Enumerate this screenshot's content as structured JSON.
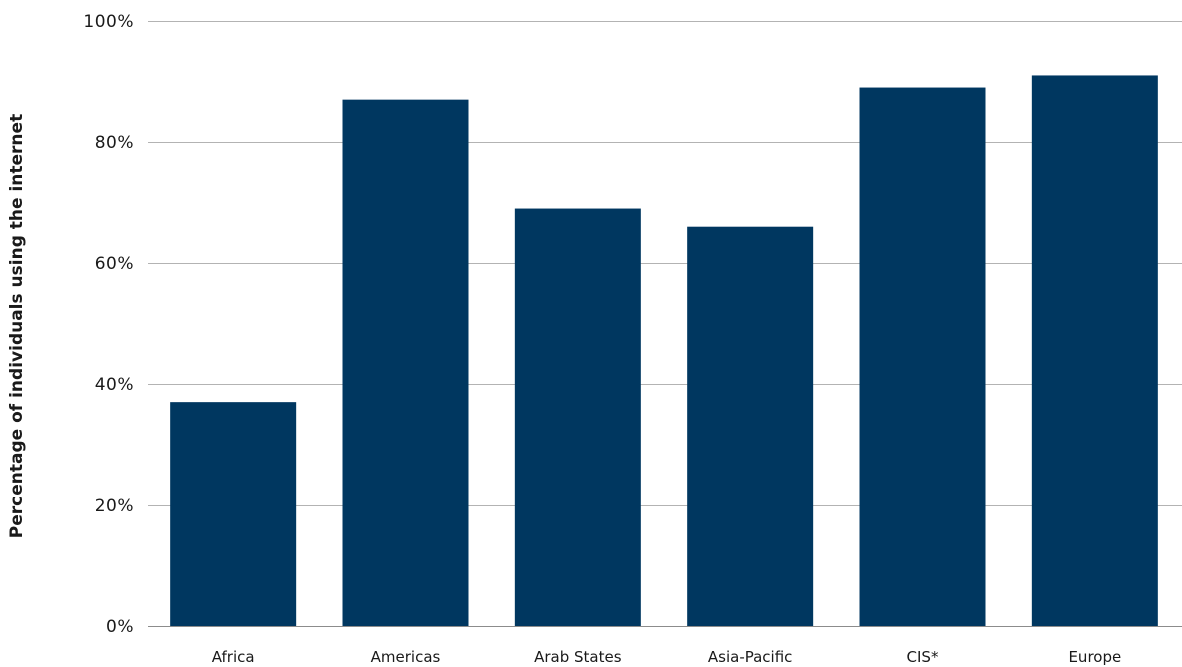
{
  "chart_data": {
    "type": "bar",
    "categories": [
      "Africa",
      "Americas",
      "Arab States",
      "Asia-Pacific",
      "CIS*",
      "Europe"
    ],
    "values": [
      37,
      87,
      69,
      66,
      89,
      91
    ],
    "title": "",
    "xlabel": "",
    "ylabel": "Percentage of individuals using the internet",
    "ylim": [
      0,
      100
    ],
    "yticks": [
      0,
      20,
      40,
      60,
      80,
      100
    ],
    "ytick_labels": [
      "0%",
      "20%",
      "40%",
      "60%",
      "80%",
      "100%"
    ],
    "grid": true,
    "legend": "none",
    "bar_color": "#003760"
  }
}
